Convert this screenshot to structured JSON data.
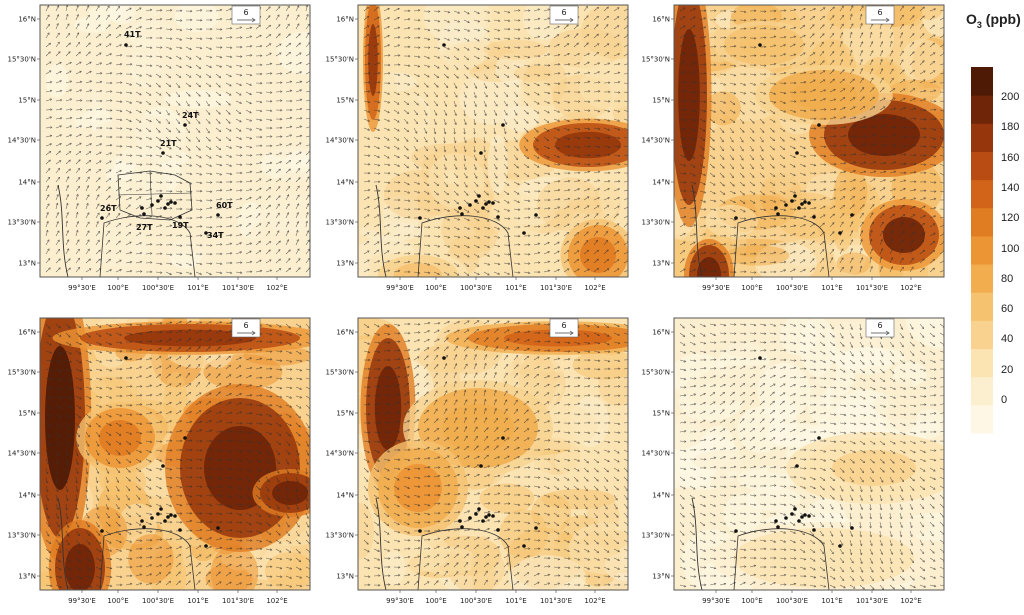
{
  "ref_vector_label": "6",
  "lat_labels": [
    "16°N",
    "15°30'N",
    "15°N",
    "14°30'N",
    "14°N",
    "13°30'N",
    "13°N"
  ],
  "lon_labels": [
    "99°30'E",
    "100°E",
    "100°30'E",
    "101°E",
    "101°30'E",
    "102°E"
  ],
  "site_labels": [
    "41T",
    "24T",
    "21T",
    "26T",
    "27T",
    "19T",
    "60T",
    "34T"
  ],
  "colorbar": {
    "title": "O",
    "title_sub": "3",
    "title_unit": " (ppb)",
    "ticks": [
      "200",
      "180",
      "160",
      "140",
      "120",
      "100",
      "80",
      "60",
      "40",
      "20",
      "0"
    ],
    "colors": [
      "#fef7e6",
      "#fcefd0",
      "#fbe3b2",
      "#f8d28e",
      "#f5c270",
      "#f1ad4e",
      "#ec9535",
      "#e07c22",
      "#d16418",
      "#b94c12",
      "#95360c",
      "#6e2508",
      "#4e1a05"
    ]
  },
  "panels": [
    {
      "id": "panel-1",
      "intensity": 0.15,
      "labeled": true
    },
    {
      "id": "panel-2",
      "intensity": 0.45,
      "labeled": false
    },
    {
      "id": "panel-3",
      "intensity": 0.7,
      "labeled": false
    },
    {
      "id": "panel-4",
      "intensity": 0.9,
      "labeled": false
    },
    {
      "id": "panel-5",
      "intensity": 0.6,
      "labeled": false
    },
    {
      "id": "panel-6",
      "intensity": 0.1,
      "labeled": false
    }
  ]
}
